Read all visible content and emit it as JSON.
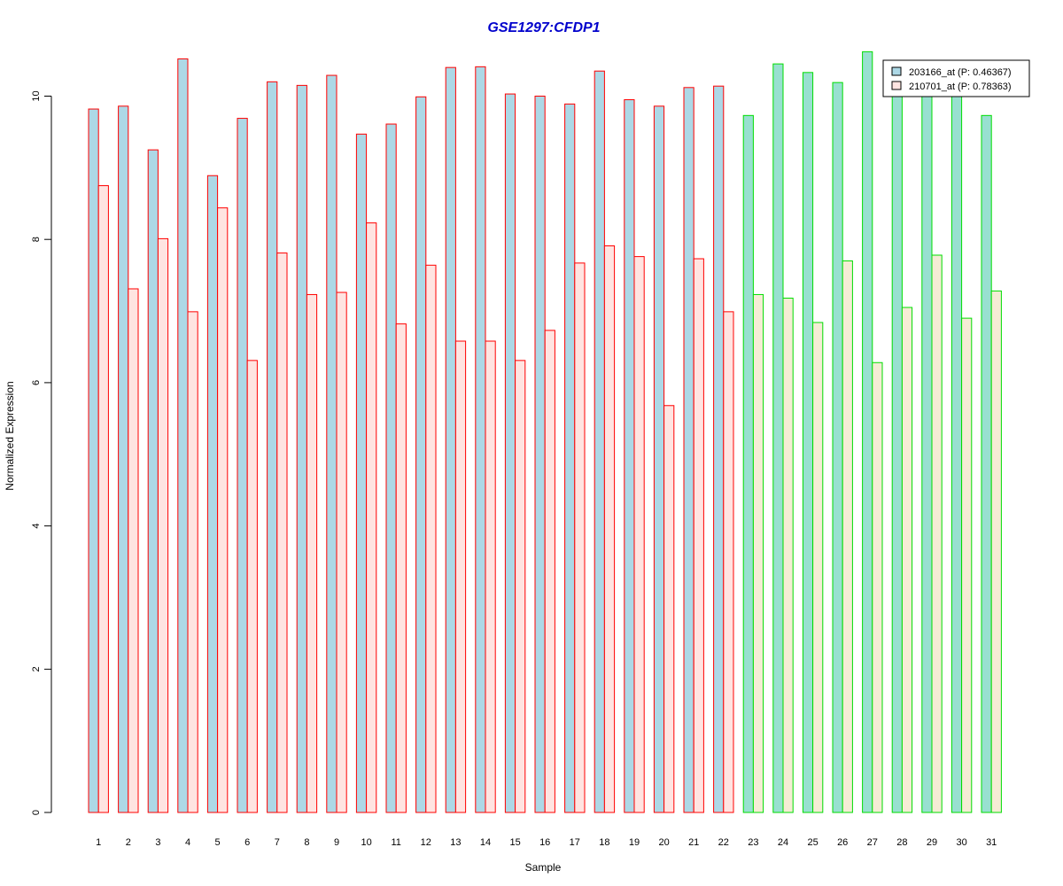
{
  "chart_data": {
    "type": "bar",
    "title": "GSE1297:CFDP1",
    "xlabel": "Sample",
    "ylabel": "Normalized Expression",
    "ylim": [
      0,
      10.7
    ],
    "yticks": [
      "0",
      "2",
      "4",
      "6",
      "8",
      "10"
    ],
    "categories": [
      "1",
      "2",
      "3",
      "4",
      "5",
      "6",
      "7",
      "8",
      "9",
      "10",
      "11",
      "12",
      "13",
      "14",
      "15",
      "16",
      "17",
      "18",
      "19",
      "20",
      "21",
      "22",
      "23",
      "24",
      "25",
      "26",
      "27",
      "28",
      "29",
      "30",
      "31"
    ],
    "series": [
      {
        "name": "203166_at (P: 0.46367)",
        "values": [
          9.82,
          9.86,
          9.25,
          10.52,
          8.89,
          9.69,
          10.2,
          10.15,
          10.29,
          9.47,
          9.61,
          9.99,
          10.4,
          10.41,
          10.03,
          10.0,
          9.89,
          10.35,
          9.95,
          9.86,
          10.12,
          10.14,
          9.73,
          10.45,
          10.33,
          10.19,
          10.62,
          10.1,
          10.07,
          10.05,
          9.73
        ]
      },
      {
        "name": "210701_at (P: 0.78363)",
        "values": [
          8.75,
          7.31,
          8.01,
          6.99,
          8.44,
          6.31,
          7.81,
          7.23,
          7.26,
          8.23,
          6.82,
          7.64,
          6.58,
          6.58,
          6.31,
          6.73,
          7.67,
          7.91,
          7.76,
          5.68,
          7.73,
          6.99,
          7.23,
          7.18,
          6.84,
          7.7,
          6.28,
          7.05,
          7.78,
          6.9,
          7.28
        ]
      }
    ],
    "groups": [
      {
        "samples": [
          1,
          22
        ],
        "series_fill": [
          "#add8e6",
          "#ffe4e1"
        ],
        "border": "#ff0000"
      },
      {
        "samples": [
          23,
          31
        ],
        "series_fill": [
          "#98e0d0",
          "#f5ecd5"
        ],
        "border": "#00dd00"
      }
    ],
    "legend_fills": [
      "#add8e6",
      "#ffe4e1"
    ],
    "legend_position": "top-right",
    "title_color": "#0000cc",
    "grid": false
  }
}
